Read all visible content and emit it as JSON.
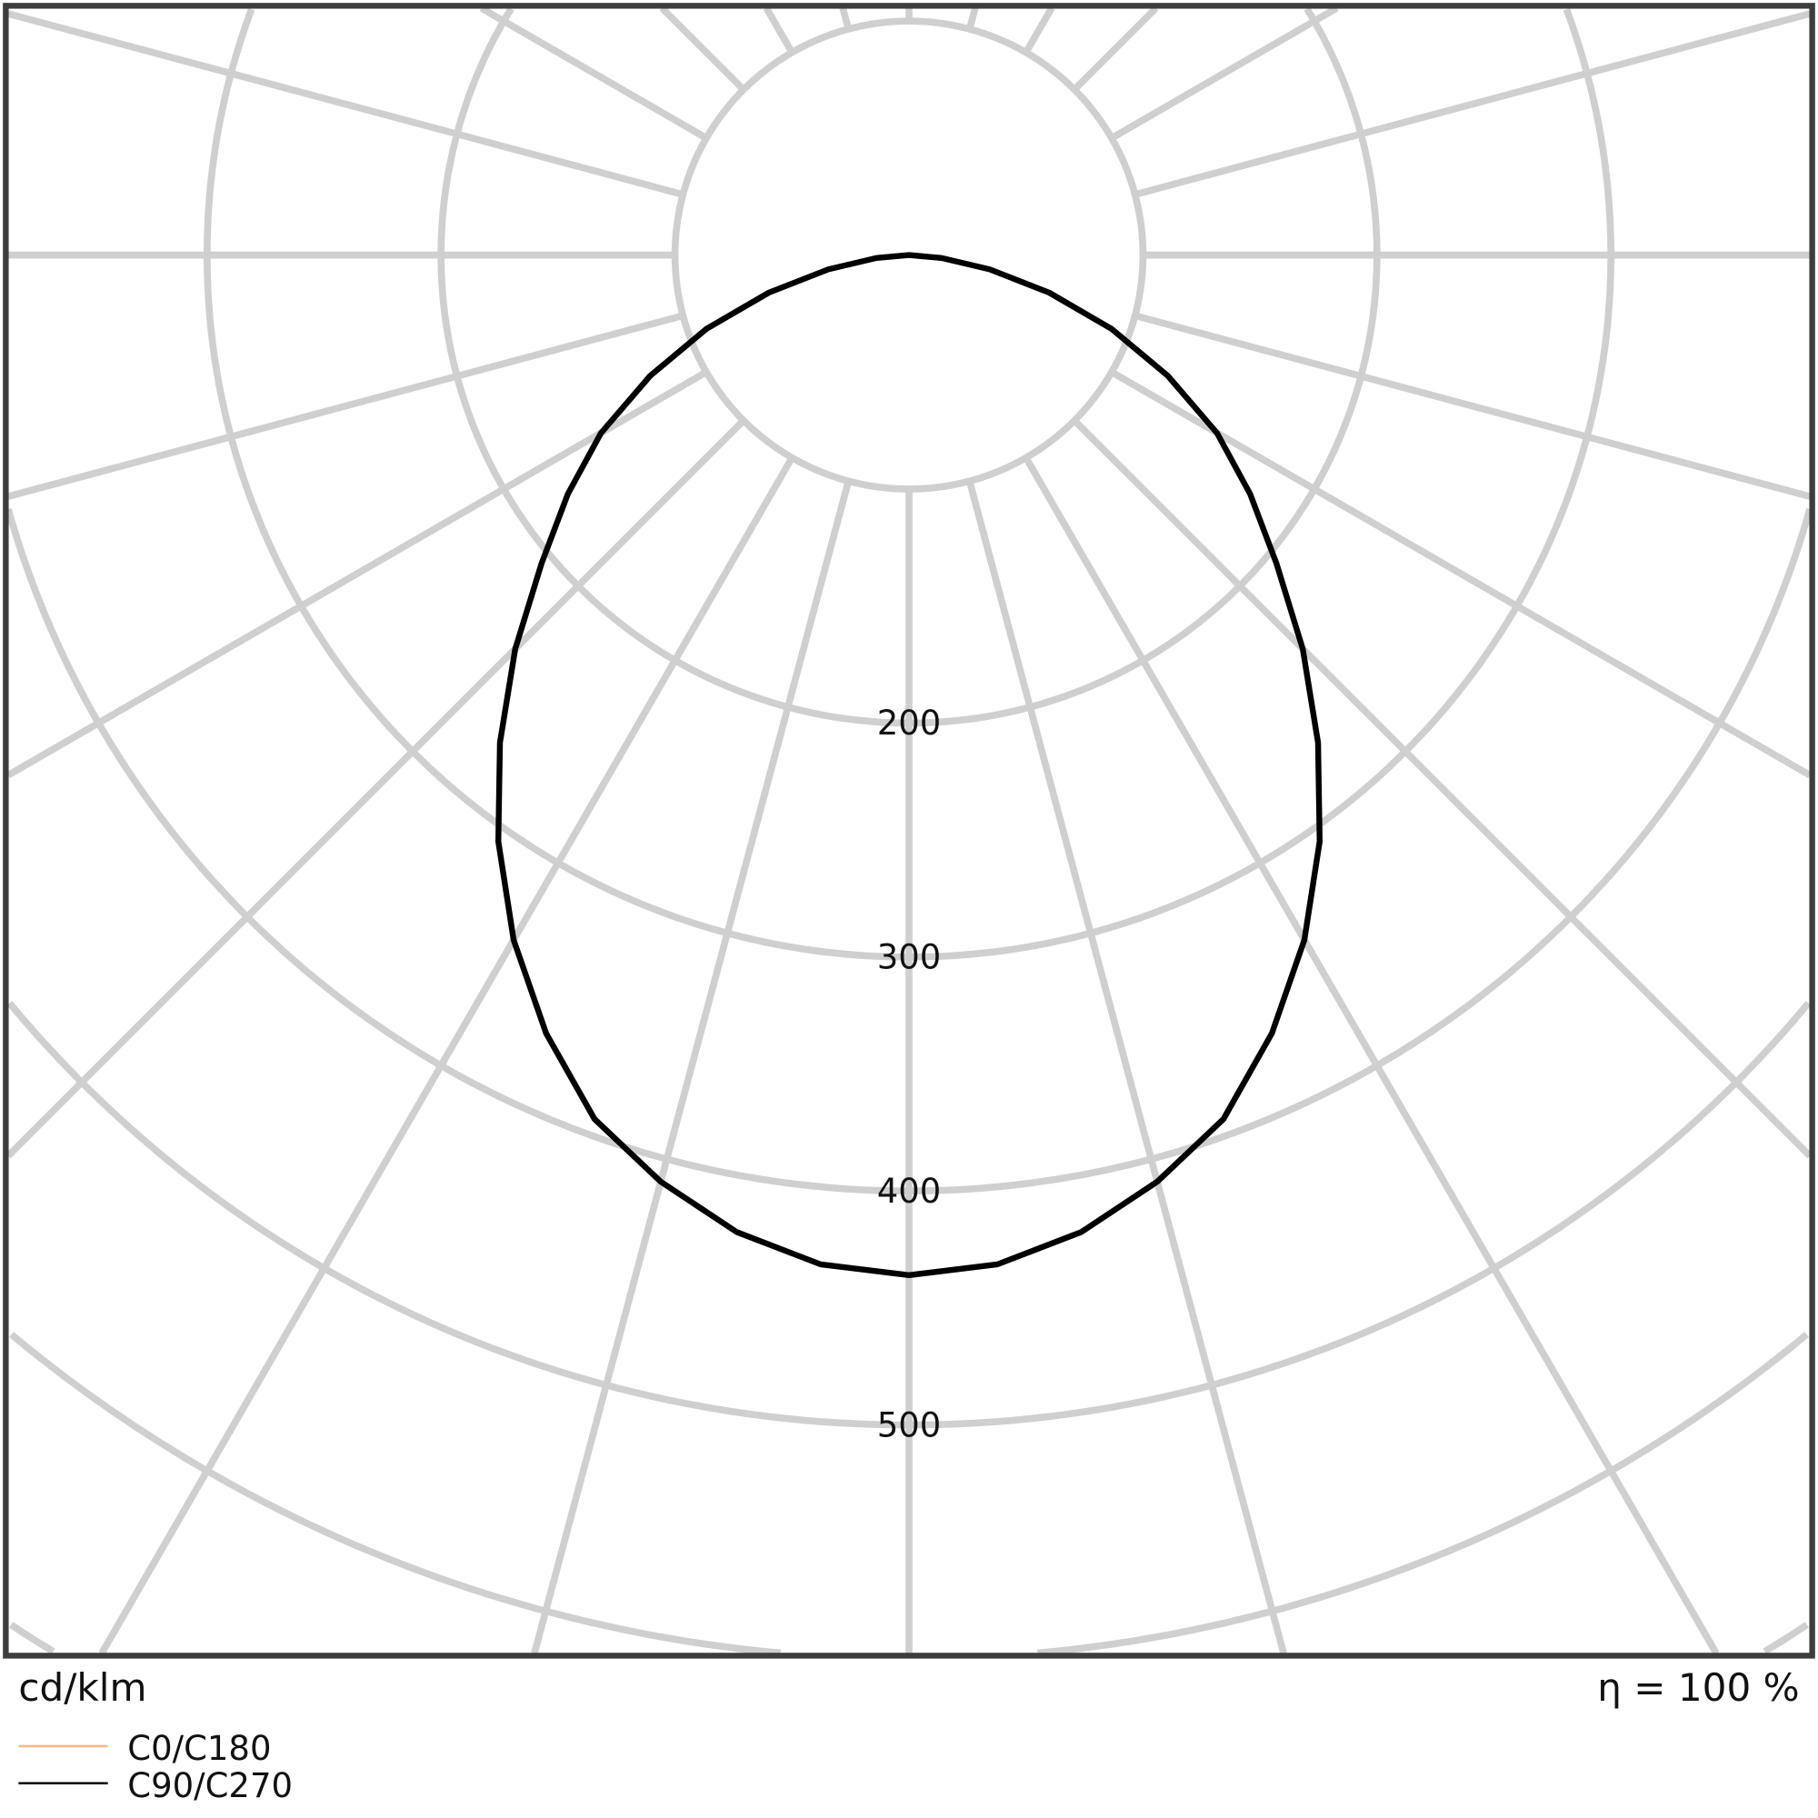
{
  "chart_data": {
    "type": "polar-line",
    "unit_label": "cd/klm",
    "efficiency_label": "η = 100 %",
    "radial_tick_labels": [
      "200",
      "300",
      "400",
      "500"
    ],
    "radial_rings": [
      100,
      200,
      300,
      400,
      500,
      600,
      700
    ],
    "angular_grid_step_deg": 15,
    "grid": true,
    "legend_placement": "bottom-left",
    "angles_deg": [
      0,
      5,
      10,
      15,
      20,
      25,
      30,
      35,
      40,
      45,
      50,
      55,
      60,
      65,
      70,
      75,
      80,
      85,
      90
    ],
    "series": [
      {
        "name": "C0/C180",
        "color": "#f7b98b",
        "values": [
          436,
          433,
          424,
          410,
          393,
          367,
          338,
          306,
          272,
          238,
          205,
          178,
          152,
          122,
          92,
          62,
          35,
          14,
          0
        ]
      },
      {
        "name": "C90/C270",
        "color": "#000000",
        "values": [
          436,
          433,
          424,
          410,
          393,
          367,
          338,
          306,
          272,
          238,
          205,
          178,
          152,
          122,
          92,
          62,
          35,
          14,
          0
        ]
      }
    ]
  }
}
